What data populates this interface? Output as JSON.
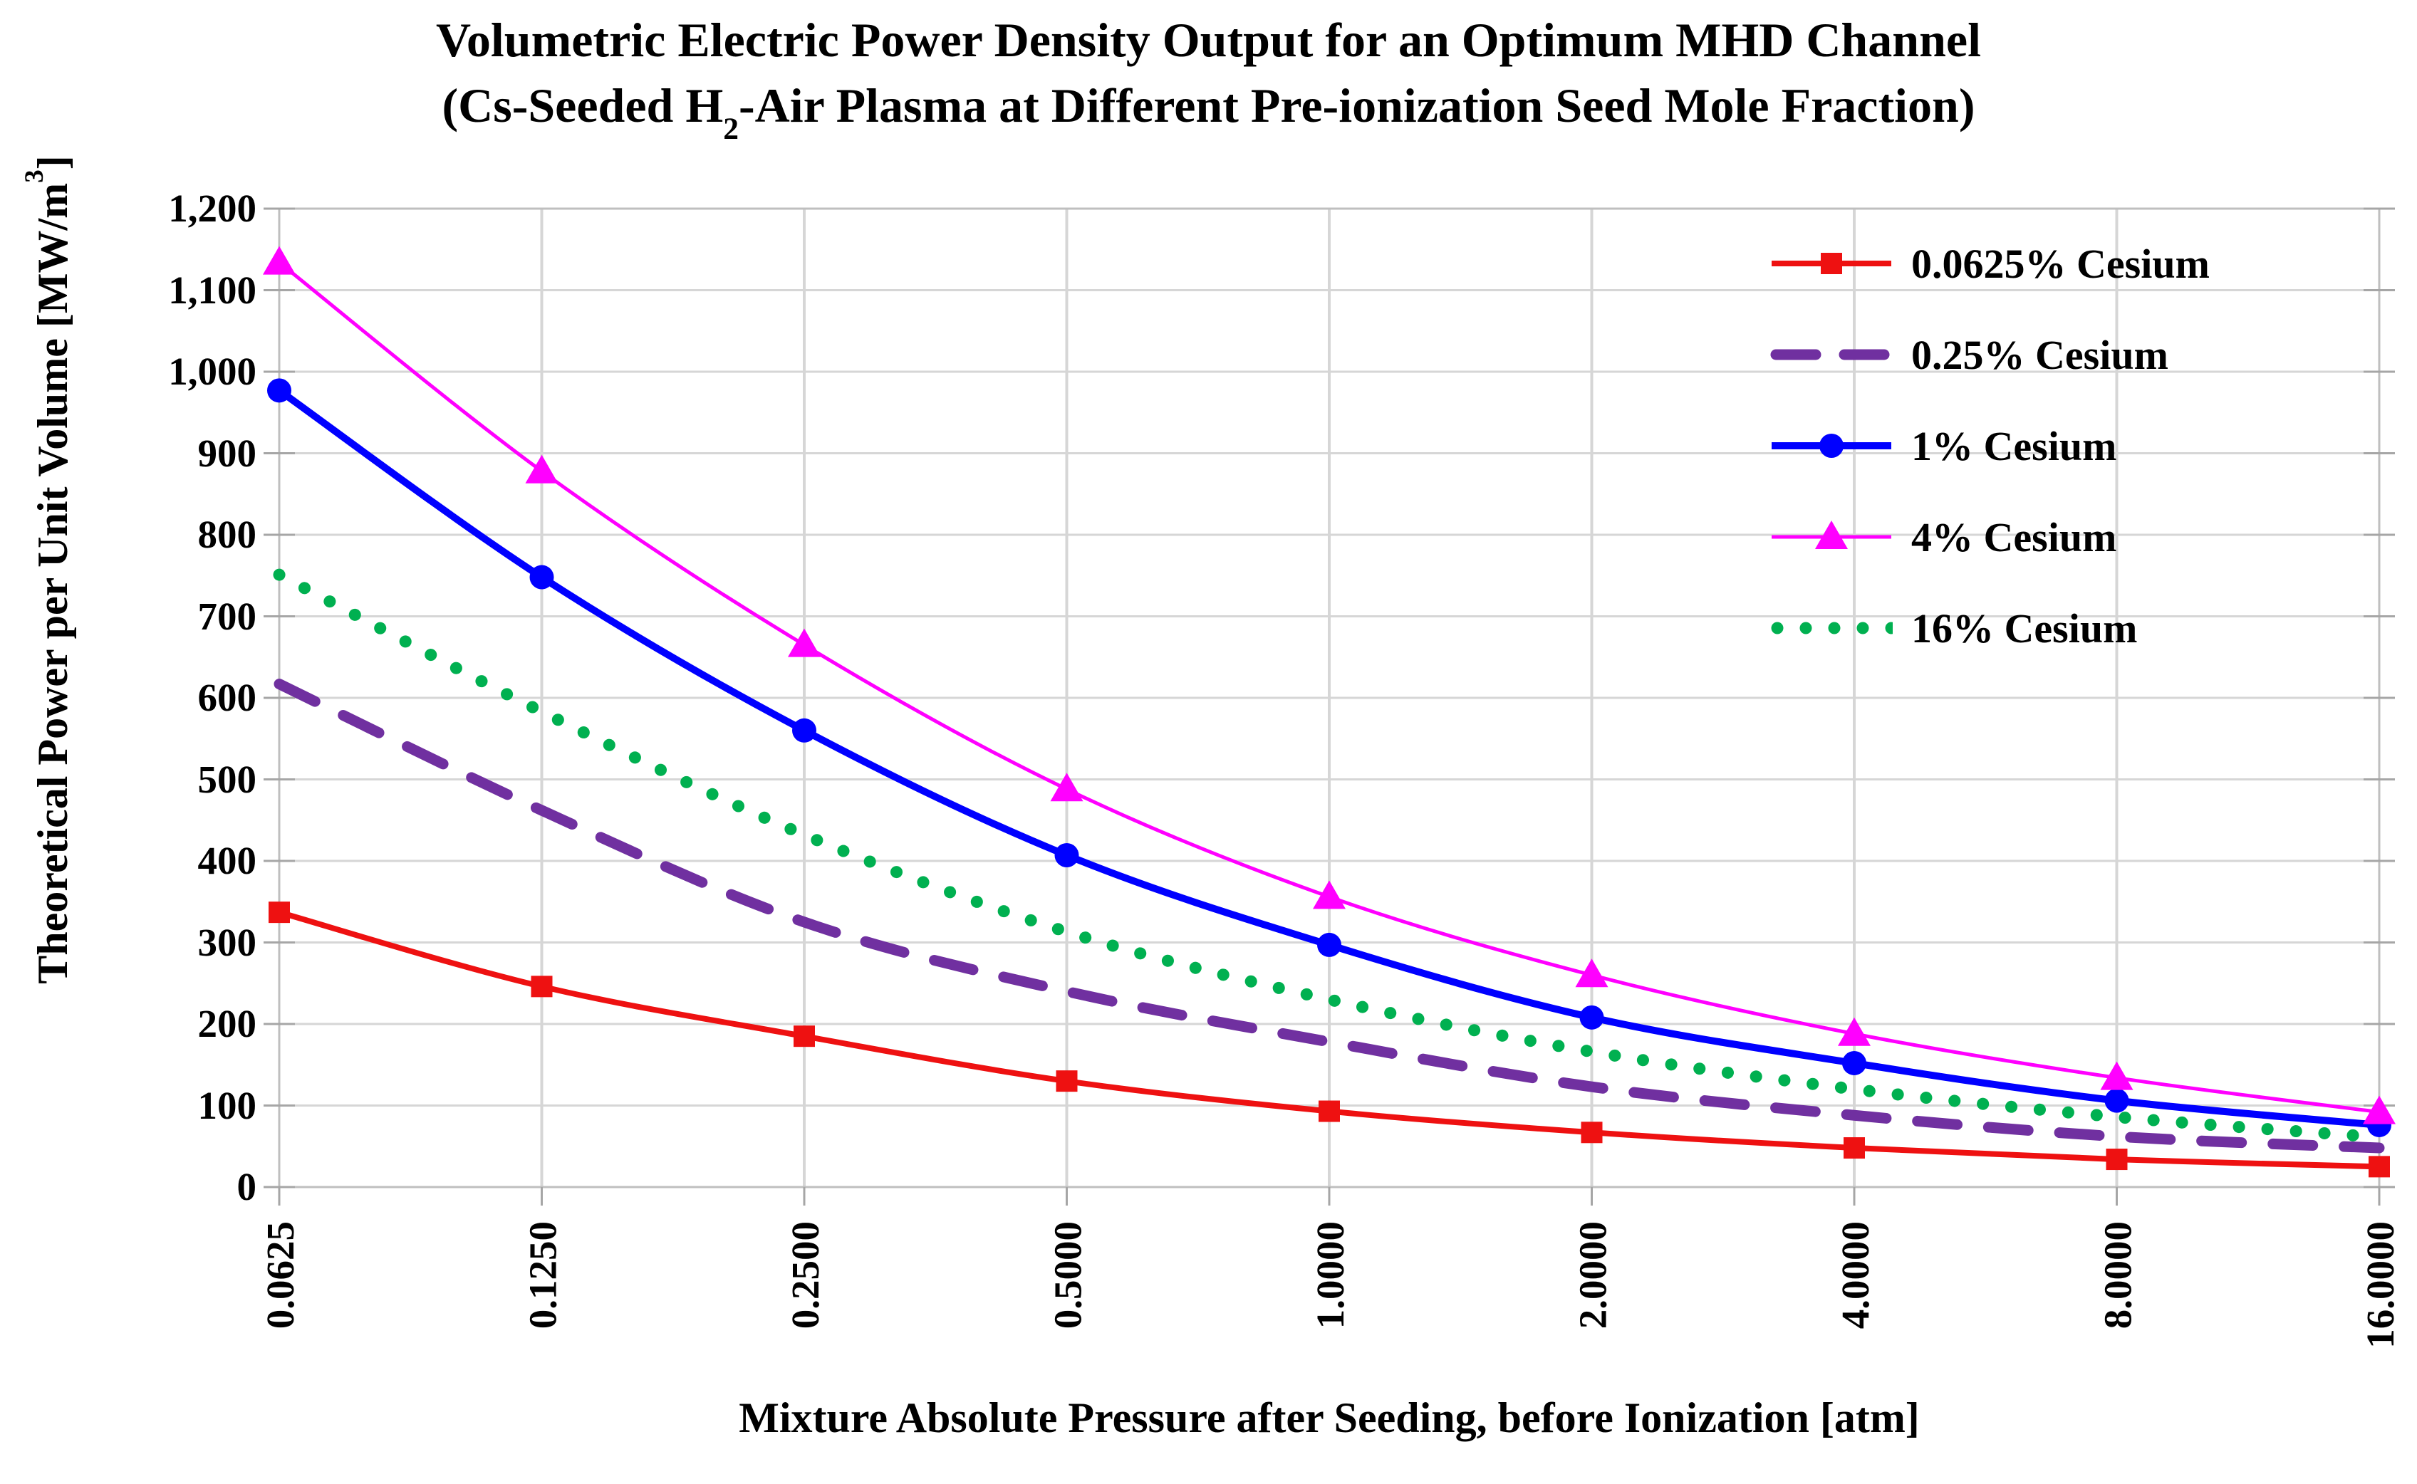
{
  "title": {
    "line1": "Volumetric Electric Power Density Output for an Optimum MHD Channel",
    "line2_pre": "(Cs-Seeded H",
    "line2_sub": "2",
    "line2_post": "-Air Plasma at Different Pre-ionization Seed Mole Fraction)"
  },
  "chart_data": {
    "type": "line",
    "title": "Volumetric Electric Power Density Output for an Optimum MHD Channel (Cs-Seeded H2-Air Plasma at Different Pre-ionization Seed Mole Fraction)",
    "x_axis": {
      "title": "Mixture Absolute Pressure after Seeding, before Ionization [atm]",
      "tick_labels": [
        "0.0625",
        "0.1250",
        "0.2500",
        "0.5000",
        "1.0000",
        "2.0000",
        "4.0000",
        "8.0000",
        "16.0000"
      ],
      "values_atm": [
        0.0625,
        0.125,
        0.25,
        0.5,
        1.0,
        2.0,
        4.0,
        8.0,
        16.0
      ],
      "scale": "categorical-log2"
    },
    "y_axis": {
      "title_pre": "Theoretical Power per Unit Volume [MW/m",
      "title_sup": "3",
      "title_post": "]",
      "min": 0,
      "max": 1200,
      "tick_interval": 100,
      "tick_labels_top_to_bottom": [
        "1,200",
        "1,100",
        "1,000",
        "900",
        "800",
        "700",
        "600",
        "500",
        "400",
        "300",
        "200",
        "100",
        "0"
      ]
    },
    "grid": {
      "horizontal": true,
      "vertical": true
    },
    "legend": {
      "position": "inside-top-right"
    },
    "colors": {
      "grid": "#d6d6d6",
      "border": "#bfbfbf",
      "tick": "#a6a6a6",
      "text": "#000000"
    },
    "series": [
      {
        "name": "0.0625% Cesium",
        "color": "#ee1111",
        "line_style": "solid-medium",
        "marker": "square",
        "values": [
          337,
          246,
          185,
          130,
          93,
          67,
          48,
          34,
          25
        ]
      },
      {
        "name": "0.25% Cesium",
        "color": "#7030a0",
        "line_style": "dashed-thick",
        "marker": "none",
        "values": [
          617,
          462,
          325,
          240,
          178,
          123,
          88,
          62,
          48
        ]
      },
      {
        "name": "1% Cesium",
        "color": "#0000ff",
        "line_style": "solid-thick",
        "marker": "circle",
        "values": [
          977,
          748,
          560,
          407,
          297,
          208,
          152,
          106,
          76
        ]
      },
      {
        "name": "4% Cesium",
        "color": "#ff00ff",
        "line_style": "solid-thin",
        "marker": "triangle",
        "values": [
          1134,
          878,
          665,
          488,
          356,
          260,
          188,
          134,
          92
        ]
      },
      {
        "name": "16% Cesium",
        "color": "#00b050",
        "line_style": "dotted-thick",
        "marker": "none",
        "values": [
          751,
          583,
          432,
          313,
          230,
          166,
          120,
          86,
          61
        ]
      }
    ]
  }
}
